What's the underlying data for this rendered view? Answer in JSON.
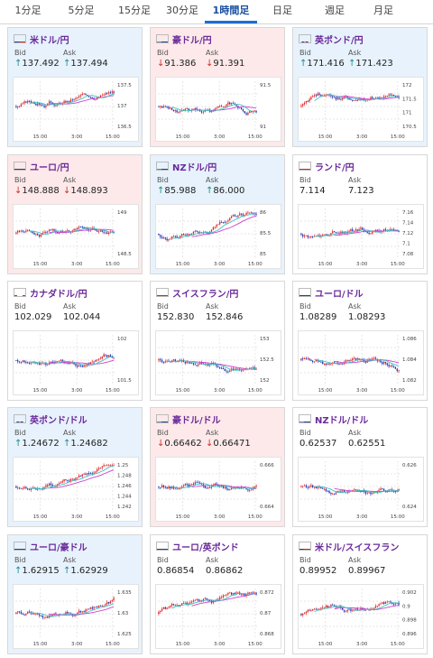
{
  "tabs": [
    {
      "label": "1分足",
      "active": false
    },
    {
      "label": "5分足",
      "active": false
    },
    {
      "label": "15分足",
      "active": false
    },
    {
      "label": "30分足",
      "active": false
    },
    {
      "label": "1時間足",
      "active": true
    },
    {
      "label": "日足",
      "active": false
    },
    {
      "label": "週足",
      "active": false
    },
    {
      "label": "月足",
      "active": false
    }
  ],
  "labels": {
    "bid": "Bid",
    "ask": "Ask"
  },
  "colors": {
    "up": "#e02020",
    "down": "#1a2fb0",
    "ma": "#d040d0",
    "ma2": "#40c0c0",
    "bg_up": "#fde9ea",
    "bg_down": "#e7f2fc",
    "bg_neutral": "#ffffff"
  },
  "cards": [
    {
      "pair": "米ドル/円",
      "flag": "us",
      "trend": "up",
      "bid": "137.492",
      "ask": "137.494",
      "bid_dir": "up",
      "ask_dir": "up",
      "yticks": [
        "137.5",
        "137",
        "136.5"
      ],
      "xticks": [
        "15:00",
        "3:00",
        "15:00"
      ]
    },
    {
      "pair": "豪ドル/円",
      "flag": "au",
      "trend": "down",
      "bid": "91.386",
      "ask": "91.391",
      "bid_dir": "down",
      "ask_dir": "down",
      "yticks": [
        "91.5",
        "91"
      ],
      "xticks": [
        "15:00",
        "3:00",
        "15:00"
      ]
    },
    {
      "pair": "英ポンド/円",
      "flag": "gb",
      "trend": "up",
      "bid": "171.416",
      "ask": "171.423",
      "bid_dir": "up",
      "ask_dir": "up",
      "yticks": [
        "172",
        "171.5",
        "171",
        "170.5"
      ],
      "xticks": [
        "15:00",
        "3:00",
        "15:00"
      ]
    },
    {
      "pair": "ユーロ/円",
      "flag": "eu",
      "trend": "down",
      "bid": "148.888",
      "ask": "148.893",
      "bid_dir": "down",
      "ask_dir": "down",
      "yticks": [
        "149",
        "148.5"
      ],
      "xticks": [
        "15:00",
        "3:00",
        "15:00"
      ]
    },
    {
      "pair": "NZドル/円",
      "flag": "nz",
      "trend": "up",
      "bid": "85.988",
      "ask": "86.000",
      "bid_dir": "up",
      "ask_dir": "up",
      "yticks": [
        "86",
        "85.5",
        "85"
      ],
      "xticks": [
        "15:00",
        "3:00",
        "15:00"
      ]
    },
    {
      "pair": "ランド/円",
      "flag": "za",
      "trend": "neutral",
      "bid": "7.114",
      "ask": "7.123",
      "bid_dir": "none",
      "ask_dir": "none",
      "yticks": [
        "7.16",
        "7.14",
        "7.12",
        "7.1",
        "7.08"
      ],
      "xticks": [
        "15:00",
        "3:00",
        "15:00"
      ]
    },
    {
      "pair": "カナダドル/円",
      "flag": "ca",
      "trend": "neutral",
      "bid": "102.029",
      "ask": "102.044",
      "bid_dir": "none",
      "ask_dir": "none",
      "yticks": [
        "102",
        "101.5"
      ],
      "xticks": [
        "15:00",
        "3:00",
        "15:00"
      ]
    },
    {
      "pair": "スイスフラン/円",
      "flag": "ch",
      "trend": "neutral",
      "bid": "152.830",
      "ask": "152.846",
      "bid_dir": "none",
      "ask_dir": "none",
      "yticks": [
        "153",
        "152.5",
        "152"
      ],
      "xticks": [
        "15:00",
        "3:00",
        "15:00"
      ]
    },
    {
      "pair": "ユーロ/ドル",
      "flag": "eu",
      "trend": "neutral",
      "bid": "1.08289",
      "ask": "1.08293",
      "bid_dir": "none",
      "ask_dir": "none",
      "yticks": [
        "1.086",
        "1.084",
        "1.082"
      ],
      "xticks": [
        "15:00",
        "3:00",
        "15:00"
      ]
    },
    {
      "pair": "英ポンド/ドル",
      "flag": "gb",
      "trend": "up",
      "bid": "1.24672",
      "ask": "1.24682",
      "bid_dir": "up",
      "ask_dir": "up",
      "yticks": [
        "1.25",
        "1.248",
        "1.246",
        "1.244",
        "1.242"
      ],
      "xticks": [
        "15:00",
        "3:00",
        "15:00"
      ]
    },
    {
      "pair": "豪ドル/ドル",
      "flag": "au",
      "trend": "down",
      "bid": "0.66462",
      "ask": "0.66471",
      "bid_dir": "down",
      "ask_dir": "down",
      "yticks": [
        "0.666",
        "0.664"
      ],
      "xticks": [
        "15:00",
        "3:00",
        "15:00"
      ]
    },
    {
      "pair": "NZドル/ドル",
      "flag": "nz",
      "trend": "neutral",
      "bid": "0.62537",
      "ask": "0.62551",
      "bid_dir": "none",
      "ask_dir": "none",
      "yticks": [
        "0.626",
        "0.624"
      ],
      "xticks": [
        "15:00",
        "3:00",
        "15:00"
      ]
    },
    {
      "pair": "ユーロ/豪ドル",
      "flag": "eu",
      "trend": "up",
      "bid": "1.62915",
      "ask": "1.62929",
      "bid_dir": "up",
      "ask_dir": "up",
      "yticks": [
        "1.635",
        "1.63",
        "1.625"
      ],
      "xticks": [
        "15:00",
        "3:00",
        "15:00"
      ]
    },
    {
      "pair": "ユーロ/英ポンド",
      "flag": "eu",
      "trend": "neutral",
      "bid": "0.86854",
      "ask": "0.86862",
      "bid_dir": "none",
      "ask_dir": "none",
      "yticks": [
        "0.872",
        "0.87",
        "0.868"
      ],
      "xticks": [
        "15:00",
        "3:00",
        "15:00"
      ]
    },
    {
      "pair": "米ドル/スイスフラン",
      "flag": "us",
      "trend": "neutral",
      "bid": "0.89952",
      "ask": "0.89967",
      "bid_dir": "none",
      "ask_dir": "none",
      "yticks": [
        "0.902",
        "0.9",
        "0.898",
        "0.896"
      ],
      "xticks": [
        "15:00",
        "3:00",
        "15:00"
      ]
    }
  ]
}
